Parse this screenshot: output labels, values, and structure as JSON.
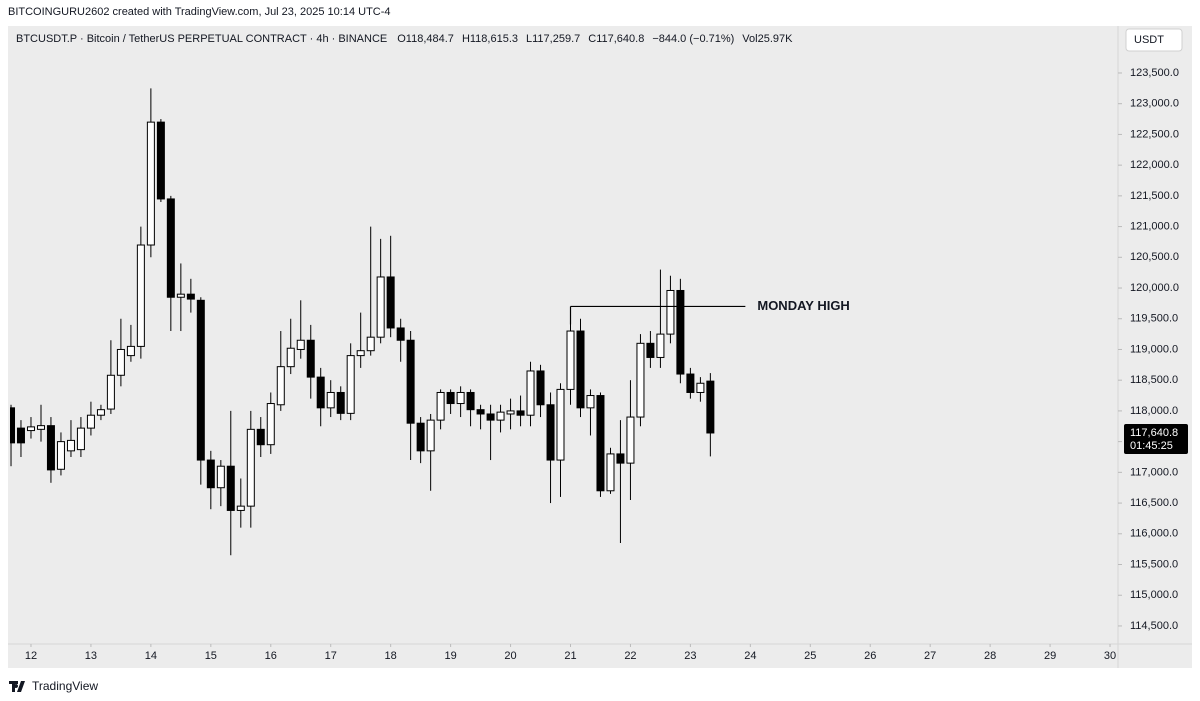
{
  "header": {
    "credit": "BITCOINGURU2602 created with TradingView.com, Jul 23, 2025 10:14 UTC-4",
    "brand": "TradingView"
  },
  "chart_data": {
    "type": "candlestick",
    "symbol": "BTCUSDT.P · Bitcoin / TetherUS PERPETUAL CONTRACT · 4h · BINANCE",
    "ohlc_legend": [
      "O118,484.7",
      "H118,615.3",
      "L117,259.7",
      "C117,640.8",
      "−844.0 (−0.71%)",
      "Vol25.97K"
    ],
    "currency": "USDT",
    "up_color": "#ffffff",
    "down_color": "#000000",
    "border_color": "#000000",
    "x": [
      11.667,
      11.833,
      12,
      12.167,
      12.333,
      12.5,
      12.667,
      12.833,
      13,
      13.167,
      13.333,
      13.5,
      13.667,
      13.833,
      14,
      14.167,
      14.333,
      14.5,
      14.667,
      14.833,
      15,
      15.167,
      15.333,
      15.5,
      15.667,
      15.833,
      16,
      16.167,
      16.333,
      16.5,
      16.667,
      16.833,
      17,
      17.167,
      17.333,
      17.5,
      17.667,
      17.833,
      18,
      18.167,
      18.333,
      18.5,
      18.667,
      18.833,
      19,
      19.167,
      19.333,
      19.5,
      19.667,
      19.833,
      20,
      20.167,
      20.333,
      20.5,
      20.667,
      20.833,
      21,
      21.167,
      21.333,
      21.5,
      21.667,
      21.833,
      22,
      22.167,
      22.333,
      22.5,
      22.667,
      22.833,
      23,
      23.167,
      23.333
    ],
    "open": [
      118050,
      117720,
      117680,
      117700,
      117760,
      117050,
      117350,
      117370,
      117720,
      117930,
      118030,
      118580,
      118900,
      119050,
      120700,
      122700,
      121450,
      119850,
      119900,
      119800,
      117200,
      116750,
      117100,
      116380,
      116450,
      117700,
      117450,
      118100,
      118720,
      119000,
      119150,
      118550,
      118050,
      118300,
      117960,
      118900,
      118980,
      119200,
      120180,
      119350,
      119150,
      117800,
      117350,
      117850,
      118300,
      118120,
      118300,
      118020,
      117950,
      117850,
      117950,
      118000,
      117930,
      118650,
      118100,
      117200,
      118350,
      119300,
      118050,
      118250,
      116700,
      117300,
      117150,
      117900,
      119100,
      118870,
      119250,
      119960,
      118600,
      118300,
      118484.7
    ],
    "high": [
      118100,
      117850,
      117900,
      118100,
      117900,
      117650,
      117850,
      117900,
      118150,
      118100,
      119150,
      119500,
      119400,
      121000,
      123250,
      122750,
      121500,
      120400,
      120150,
      119850,
      117350,
      117200,
      118000,
      116900,
      118000,
      117900,
      118300,
      119300,
      119500,
      119800,
      119400,
      118700,
      118500,
      118400,
      119100,
      119600,
      121000,
      120800,
      120850,
      119500,
      119300,
      117900,
      117950,
      118350,
      118350,
      118400,
      118350,
      118100,
      118100,
      118100,
      118200,
      118250,
      118800,
      118750,
      118300,
      118450,
      119600,
      119500,
      118350,
      118300,
      117400,
      117850,
      118500,
      119250,
      119300,
      120300,
      120200,
      120150,
      118700,
      118550,
      118615.3
    ],
    "low": [
      117100,
      117250,
      117550,
      117500,
      116830,
      116950,
      117250,
      117250,
      117600,
      117850,
      117950,
      118400,
      118800,
      118850,
      120500,
      121400,
      119300,
      119300,
      119600,
      116800,
      116400,
      116450,
      115650,
      116100,
      116100,
      117250,
      117300,
      118000,
      118600,
      118850,
      118200,
      117750,
      117900,
      117850,
      117850,
      118700,
      118900,
      119100,
      119200,
      118800,
      117200,
      117150,
      116700,
      117700,
      117950,
      117900,
      117750,
      117700,
      117200,
      117650,
      117700,
      117750,
      117750,
      117900,
      116500,
      116600,
      118100,
      117900,
      117600,
      116600,
      116650,
      115850,
      116550,
      117750,
      118700,
      118700,
      119100,
      118450,
      118200,
      118150,
      117259.7
    ],
    "close": [
      117480,
      117480,
      117740,
      117760,
      117040,
      117500,
      117520,
      117720,
      117930,
      118020,
      118580,
      119000,
      119050,
      120700,
      122700,
      121450,
      119850,
      119900,
      119820,
      117200,
      116750,
      117100,
      116380,
      116450,
      117700,
      117450,
      118120,
      118720,
      119020,
      119150,
      118550,
      118050,
      118300,
      117960,
      118900,
      118980,
      119200,
      120180,
      119350,
      119150,
      117800,
      117350,
      117850,
      118300,
      118120,
      118300,
      118020,
      117950,
      117850,
      117980,
      118000,
      117930,
      118650,
      118100,
      117200,
      118350,
      119300,
      118050,
      118250,
      116700,
      117300,
      117150,
      117900,
      119100,
      118870,
      119250,
      119960,
      118600,
      118300,
      118450,
      117640.8
    ],
    "xlim": [
      11.65,
      30.133
    ],
    "xticks": [
      12,
      13,
      14,
      15,
      16,
      17,
      18,
      19,
      20,
      21,
      22,
      23,
      24,
      25,
      26,
      27,
      28,
      29,
      30
    ],
    "ylim": [
      114190,
      123874
    ],
    "yticks": [
      {
        "value": 114500,
        "label": "114,500.0"
      },
      {
        "value": 115000,
        "label": "115,000.0"
      },
      {
        "value": 115500,
        "label": "115,500.0"
      },
      {
        "value": 116000,
        "label": "116,000.0"
      },
      {
        "value": 116500,
        "label": "116,500.0"
      },
      {
        "value": 117000,
        "label": "117,000.0"
      },
      {
        "value": 117500,
        "label": "117,500.0"
      },
      {
        "value": 118000,
        "label": "118,000.0"
      },
      {
        "value": 118500,
        "label": "118,500.0"
      },
      {
        "value": 119000,
        "label": "119,000.0"
      },
      {
        "value": 119500,
        "label": "119,500.0"
      },
      {
        "value": 120000,
        "label": "120,000.0"
      },
      {
        "value": 120500,
        "label": "120,500.0"
      },
      {
        "value": 121000,
        "label": "121,000.0"
      },
      {
        "value": 121500,
        "label": "121,500.0"
      },
      {
        "value": 122000,
        "label": "122,000.0"
      },
      {
        "value": 122500,
        "label": "122,500.0"
      },
      {
        "value": 123000,
        "label": "123,000.0"
      },
      {
        "value": 123500,
        "label": "123,500.0"
      }
    ],
    "last_price": {
      "value": 117640.8,
      "label": "117,640.8",
      "countdown": "01:45:25"
    },
    "annotation": {
      "text": "MONDAY HIGH",
      "x": [
        21,
        23.917
      ],
      "value": 119700
    },
    "grid": false
  }
}
